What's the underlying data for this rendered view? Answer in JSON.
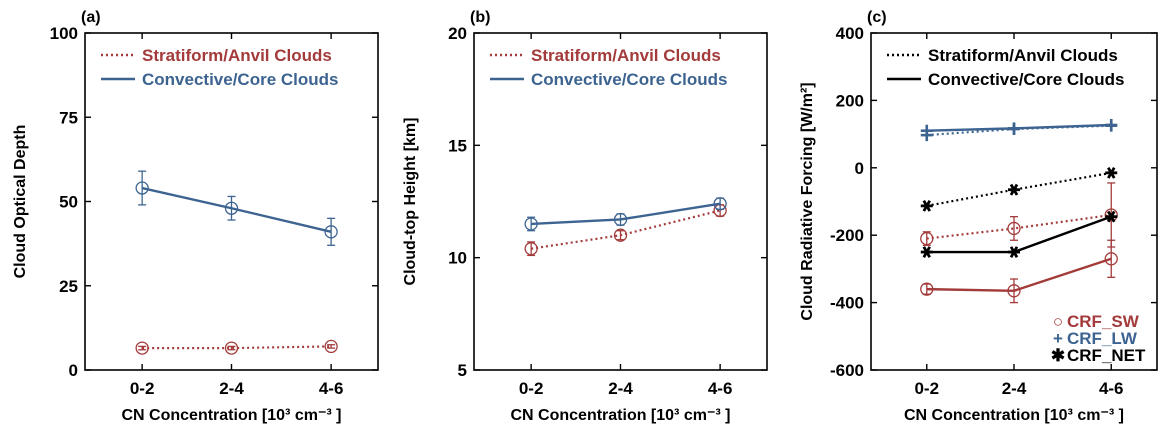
{
  "colors": {
    "red": "#a33b3b",
    "blue": "#3d6491",
    "black": "#000000"
  },
  "chart_data": [
    {
      "type": "line",
      "panel_label": "(a)",
      "xlabel": "CN Concentration [10³ cm⁻³ ]",
      "ylabel": "Cloud Optical Depth",
      "categories": [
        "0-2",
        "2-4",
        "4-6"
      ],
      "ylim": [
        0,
        100
      ],
      "yticks": [
        "0",
        "25",
        "50",
        "75",
        "100"
      ],
      "legend": [
        {
          "label": "Stratiform/Anvil Clouds",
          "style": "dotted",
          "color": "red"
        },
        {
          "label": "Convective/Core Clouds",
          "style": "solid",
          "color": "blue"
        }
      ],
      "series": [
        {
          "name": "Stratiform/Anvil Clouds",
          "style": "dotted",
          "color": "red",
          "marker": "circle",
          "values": [
            6.5,
            6.5,
            7
          ],
          "errors": [
            0.5,
            0.5,
            0.5
          ]
        },
        {
          "name": "Convective/Core Clouds",
          "style": "solid",
          "color": "blue",
          "marker": "circle",
          "values": [
            54,
            48,
            41
          ],
          "errors": [
            5,
            3.5,
            4
          ]
        }
      ]
    },
    {
      "type": "line",
      "panel_label": "(b)",
      "xlabel": "CN Concentration [10³ cm⁻³ ]",
      "ylabel": "Cloud-top Height [km]",
      "categories": [
        "0-2",
        "2-4",
        "4-6"
      ],
      "ylim": [
        5,
        20
      ],
      "yticks": [
        "5",
        "10",
        "15",
        "20"
      ],
      "legend": [
        {
          "label": "Stratiform/Anvil Clouds",
          "style": "dotted",
          "color": "red"
        },
        {
          "label": "Convective/Core Clouds",
          "style": "solid",
          "color": "blue"
        }
      ],
      "series": [
        {
          "name": "Stratiform/Anvil Clouds",
          "style": "dotted",
          "color": "red",
          "marker": "circle",
          "values": [
            10.4,
            11.0,
            12.1
          ],
          "errors": [
            0.3,
            0.2,
            0.25
          ]
        },
        {
          "name": "Convective/Core Clouds",
          "style": "solid",
          "color": "blue",
          "marker": "circle",
          "values": [
            11.5,
            11.7,
            12.4
          ],
          "errors": [
            0.3,
            0.25,
            0.25
          ]
        }
      ]
    },
    {
      "type": "line",
      "panel_label": "(c)",
      "xlabel": "CN Concentration [10³ cm⁻³ ]",
      "ylabel": "Cloud Radiative Forcing [W/m²]",
      "categories": [
        "0-2",
        "2-4",
        "4-6"
      ],
      "ylim": [
        -600,
        400
      ],
      "yticks": [
        "-600",
        "-400",
        "-200",
        "0",
        "200",
        "400"
      ],
      "legend": [
        {
          "label": "Stratiform/Anvil Clouds",
          "style": "dotted",
          "color": "black"
        },
        {
          "label": "Convective/Core Clouds",
          "style": "solid",
          "color": "black"
        }
      ],
      "marker_legend": [
        {
          "symbol": "○",
          "label": "CRF_SW",
          "color": "red"
        },
        {
          "symbol": "+",
          "label": "CRF_LW",
          "color": "blue"
        },
        {
          "symbol": "✱",
          "label": "CRF_NET",
          "color": "black"
        }
      ],
      "series": [
        {
          "name": "CRF_SW",
          "cloud": "Stratiform/Anvil Clouds",
          "style": "dotted",
          "color": "red",
          "marker": "circle",
          "values": [
            -210,
            -180,
            -140
          ],
          "errors": [
            20,
            35,
            95
          ]
        },
        {
          "name": "CRF_SW",
          "cloud": "Convective/Core Clouds",
          "style": "solid",
          "color": "red",
          "marker": "circle",
          "values": [
            -360,
            -365,
            -270
          ],
          "errors": [
            15,
            35,
            55
          ]
        },
        {
          "name": "CRF_LW",
          "cloud": "Stratiform/Anvil Clouds",
          "style": "dotted",
          "color": "blue",
          "marker": "plus",
          "values": [
            97,
            115,
            125
          ],
          "errors": [
            0,
            0,
            0
          ]
        },
        {
          "name": "CRF_LW",
          "cloud": "Convective/Core Clouds",
          "style": "solid",
          "color": "blue",
          "marker": "plus",
          "values": [
            110,
            117,
            127
          ],
          "errors": [
            0,
            0,
            0
          ]
        },
        {
          "name": "CRF_NET",
          "cloud": "Stratiform/Anvil Clouds",
          "style": "dotted",
          "color": "black",
          "marker": "asterisk",
          "values": [
            -113,
            -65,
            -15
          ],
          "errors": [
            0,
            0,
            0
          ]
        },
        {
          "name": "CRF_NET",
          "cloud": "Convective/Core Clouds",
          "style": "solid",
          "color": "black",
          "marker": "asterisk",
          "values": [
            -250,
            -250,
            -145
          ],
          "errors": [
            0,
            0,
            0
          ]
        }
      ]
    }
  ]
}
